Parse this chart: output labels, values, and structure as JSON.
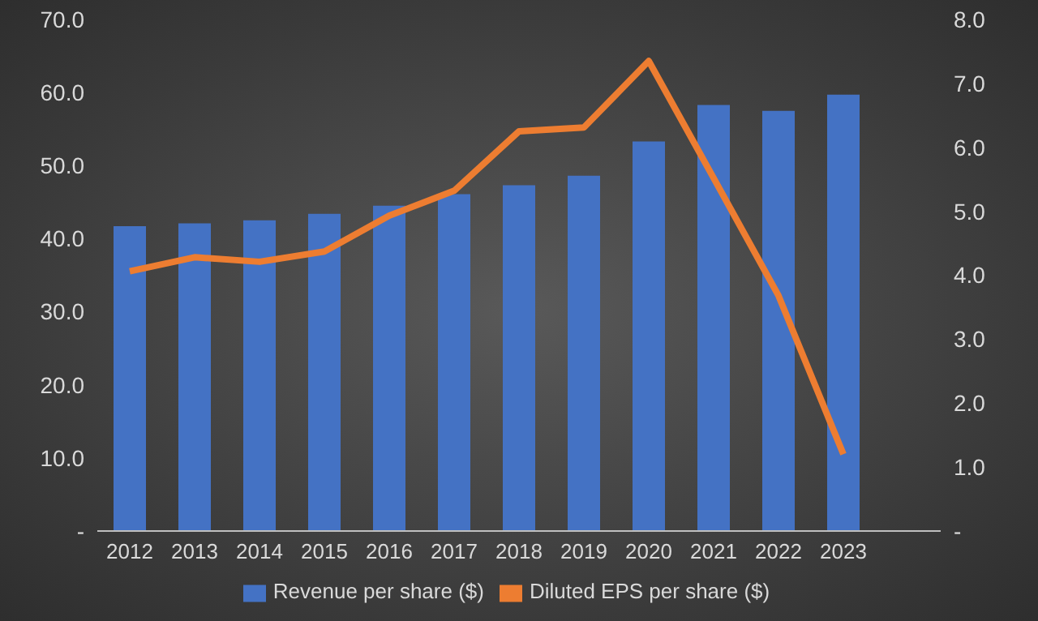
{
  "chart_data": {
    "type": "bar",
    "categories": [
      "2012",
      "2013",
      "2014",
      "2015",
      "2016",
      "2017",
      "2018",
      "2019",
      "2020",
      "2021",
      "2022",
      "2023"
    ],
    "series": [
      {
        "name": "Revenue per share ($)",
        "color": "#4472c4",
        "values": [
          41.7,
          42.1,
          42.5,
          43.4,
          44.5,
          46.1,
          47.3,
          48.6,
          53.3,
          58.3,
          57.5,
          59.7
        ]
      },
      {
        "name": "Diluted EPS per share ($)",
        "type": "line",
        "axis": "y2",
        "color": "#ed7d31",
        "values": [
          4.06,
          4.28,
          4.21,
          4.37,
          4.93,
          5.32,
          6.25,
          6.31,
          7.35,
          5.52,
          3.68,
          1.2
        ]
      }
    ],
    "ylim": [
      0,
      70
    ],
    "yticks": [
      {
        "value": 0,
        "label": "-"
      },
      {
        "value": 10,
        "label": "10.0"
      },
      {
        "value": 20,
        "label": "20.0"
      },
      {
        "value": 30,
        "label": "30.0"
      },
      {
        "value": 40,
        "label": "40.0"
      },
      {
        "value": 50,
        "label": "50.0"
      },
      {
        "value": 60,
        "label": "60.0"
      },
      {
        "value": 70,
        "label": "70.0"
      }
    ],
    "y2lim": [
      0,
      8
    ],
    "y2ticks": [
      {
        "value": 0,
        "label": "-"
      },
      {
        "value": 1,
        "label": "1.0"
      },
      {
        "value": 2,
        "label": "2.0"
      },
      {
        "value": 3,
        "label": "3.0"
      },
      {
        "value": 4,
        "label": "4.0"
      },
      {
        "value": 5,
        "label": "5.0"
      },
      {
        "value": 6,
        "label": "6.0"
      },
      {
        "value": 7,
        "label": "7.0"
      },
      {
        "value": 8,
        "label": "8.0"
      }
    ],
    "grid": false,
    "legend": "bottom",
    "marker": "none"
  }
}
